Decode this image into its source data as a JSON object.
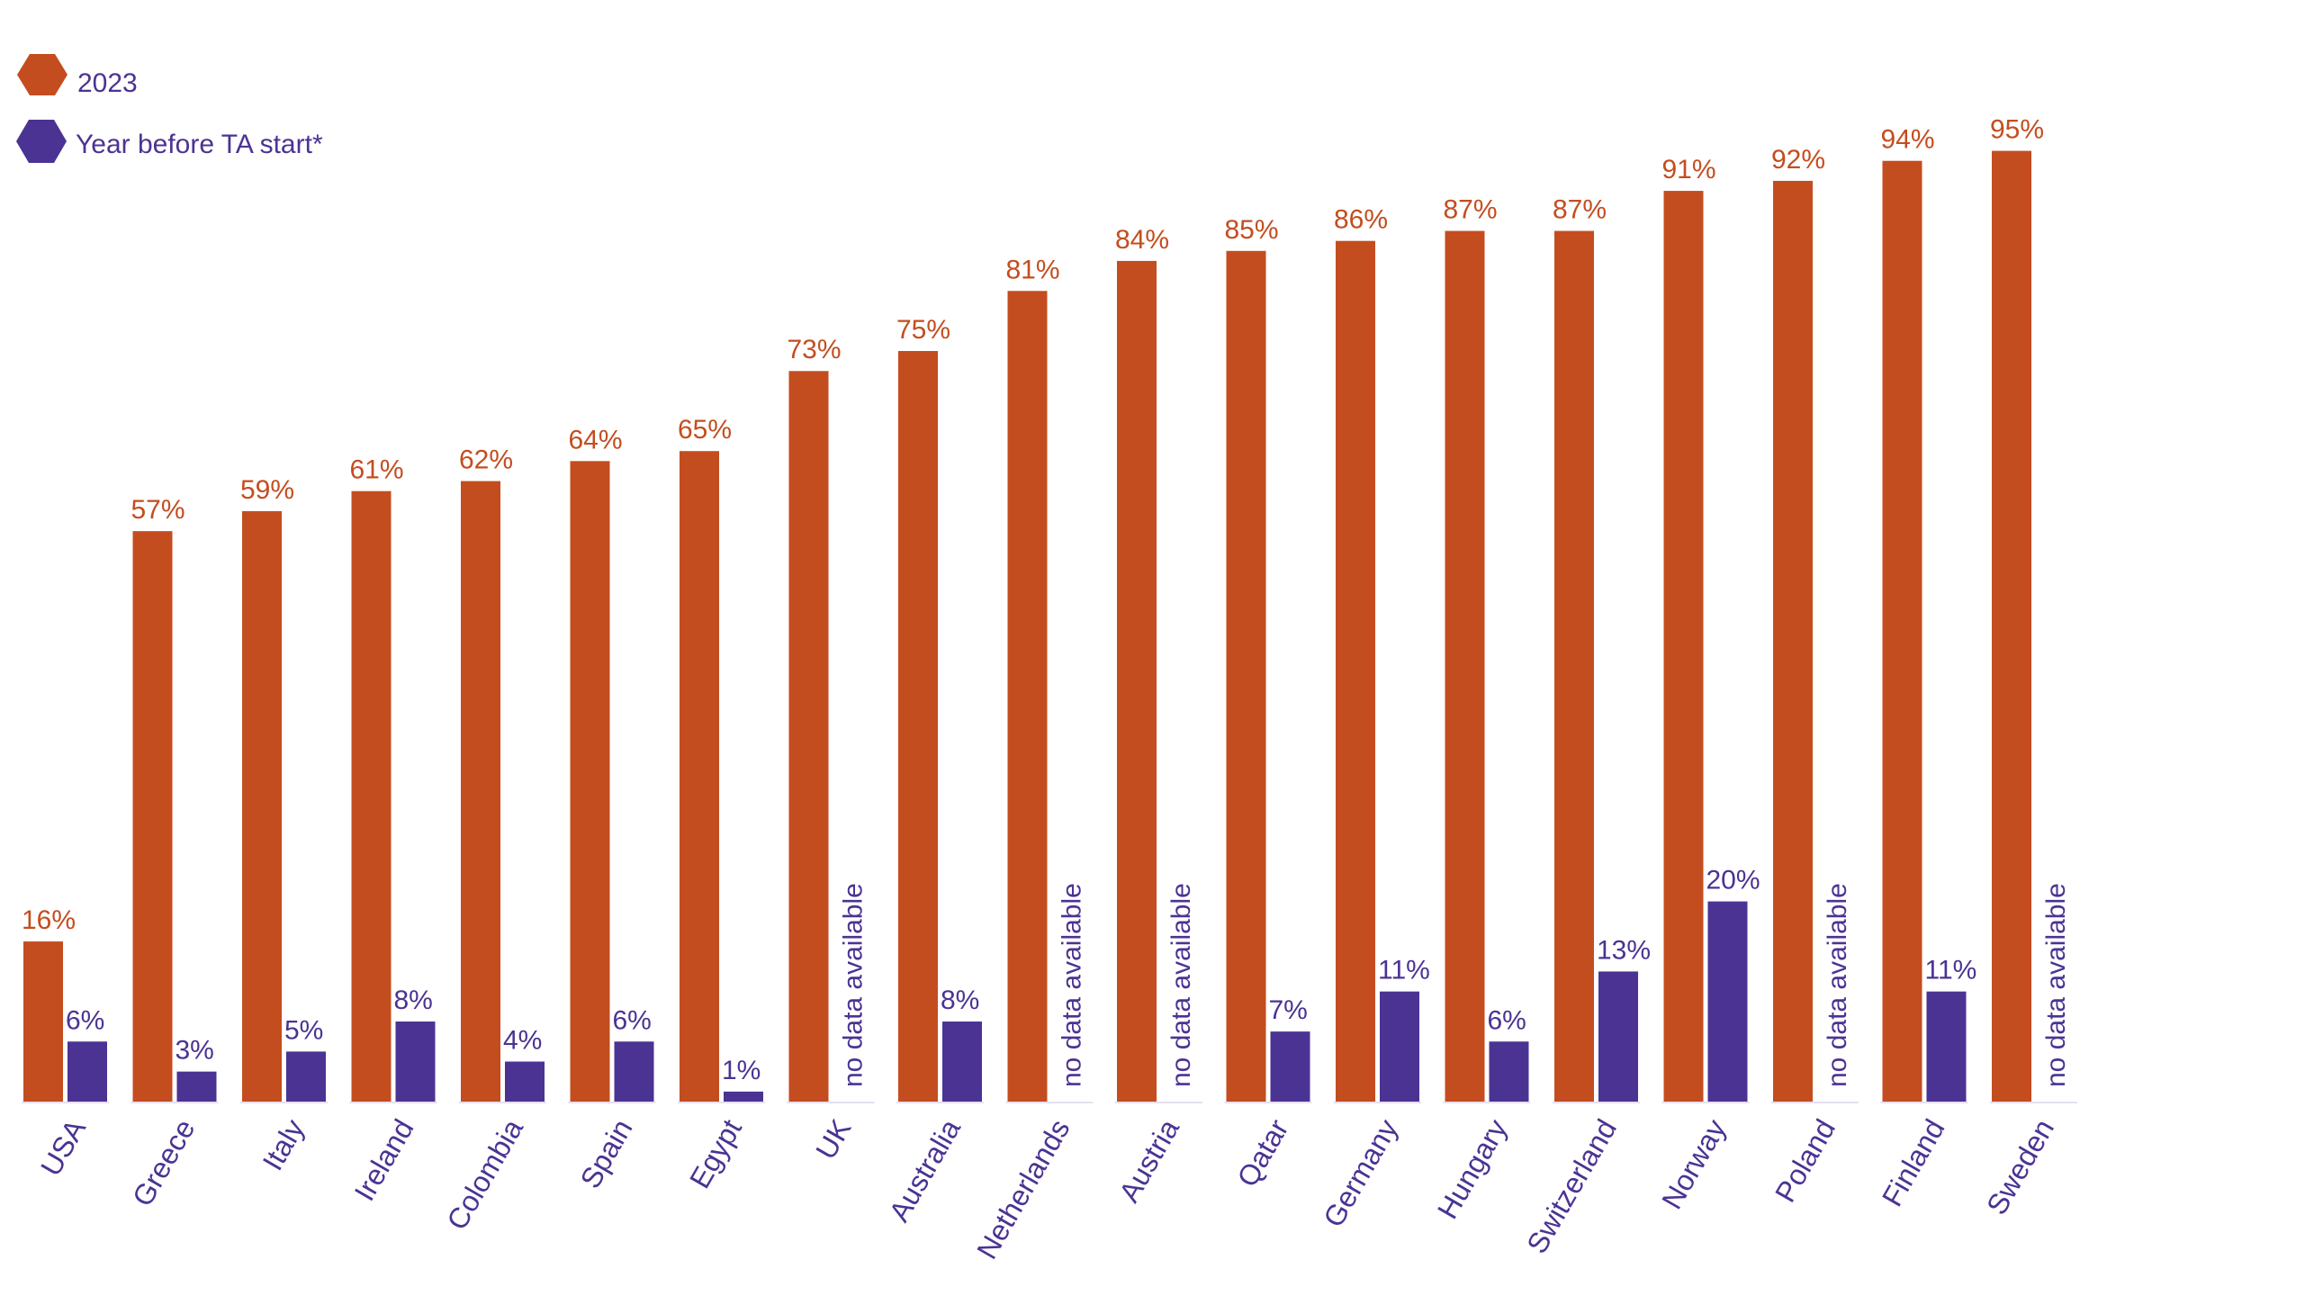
{
  "chart_data": {
    "type": "bar",
    "title": "",
    "xlabel": "",
    "ylabel": "",
    "ylim": [
      0,
      100
    ],
    "grid": false,
    "legend_position": "top-left",
    "categories": [
      "USA",
      "Greece",
      "Italy",
      "Ireland",
      "Colombia",
      "Spain",
      "Egypt",
      "UK",
      "Australia",
      "Netherlands",
      "Austria",
      "Qatar",
      "Germany",
      "Hungary",
      "Switzerland",
      "Norway",
      "Poland",
      "Finland",
      "Sweden"
    ],
    "series": [
      {
        "name": "2023",
        "color": "#C44D1F",
        "values": [
          16,
          57,
          59,
          61,
          62,
          64,
          65,
          73,
          75,
          81,
          84,
          85,
          86,
          87,
          87,
          91,
          92,
          94,
          95
        ],
        "labels": [
          "16%",
          "57%",
          "59%",
          "61%",
          "62%",
          "64%",
          "65%",
          "73%",
          "75%",
          "81%",
          "84%",
          "85%",
          "86%",
          "87%",
          "87%",
          "91%",
          "92%",
          "94%",
          "95%"
        ]
      },
      {
        "name": "Year before TA start*",
        "color": "#4B3393",
        "values": [
          6,
          3,
          5,
          8,
          4,
          6,
          1,
          null,
          8,
          null,
          null,
          7,
          11,
          6,
          13,
          20,
          null,
          11,
          null
        ],
        "labels": [
          "6%",
          "3%",
          "5%",
          "8%",
          "4%",
          "6%",
          "1%",
          "no data available",
          "8%",
          "no data available",
          "no data available",
          "7%",
          "11%",
          "6%",
          "13%",
          "20%",
          "no data available",
          "11%",
          "no data available"
        ]
      }
    ]
  }
}
